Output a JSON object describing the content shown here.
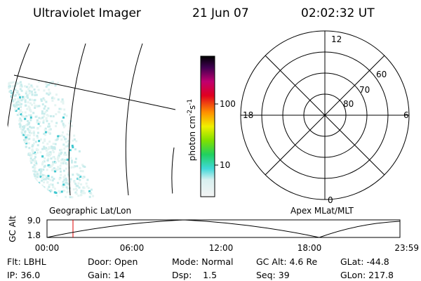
{
  "header": {
    "title": "Ultraviolet Imager",
    "date": "21 Jun 07",
    "time": "02:02:32 UT"
  },
  "colorbar": {
    "label": "photon cm",
    "label_exp1": "-2",
    "label_mid": "s",
    "label_exp2": "-1",
    "ticks": [
      "100",
      "10"
    ]
  },
  "polar": {
    "mlt_labels": [
      "12",
      "18",
      "6",
      "0"
    ],
    "lat_labels": [
      "60",
      "70",
      "80"
    ]
  },
  "altitude_plot": {
    "left_label": "Geographic Lat/Lon",
    "right_label": "Apex MLat/MLT",
    "y_label": "GC Alt",
    "y_ticks": [
      "9.0",
      "1.8"
    ],
    "x_ticks": [
      "00:00",
      "06:00",
      "12:00",
      "18:00",
      "23:59"
    ]
  },
  "footer": {
    "rows": [
      [
        "Flt: LBHL",
        "Door: Open",
        "Mode: Normal",
        "GC Alt: 4.6 Re",
        "GLat: -44.8"
      ],
      [
        "IP: 36.0",
        "Gain: 14",
        "Dsp:    1.5",
        "Seq: 39",
        "GLon: 217.8"
      ]
    ]
  }
}
